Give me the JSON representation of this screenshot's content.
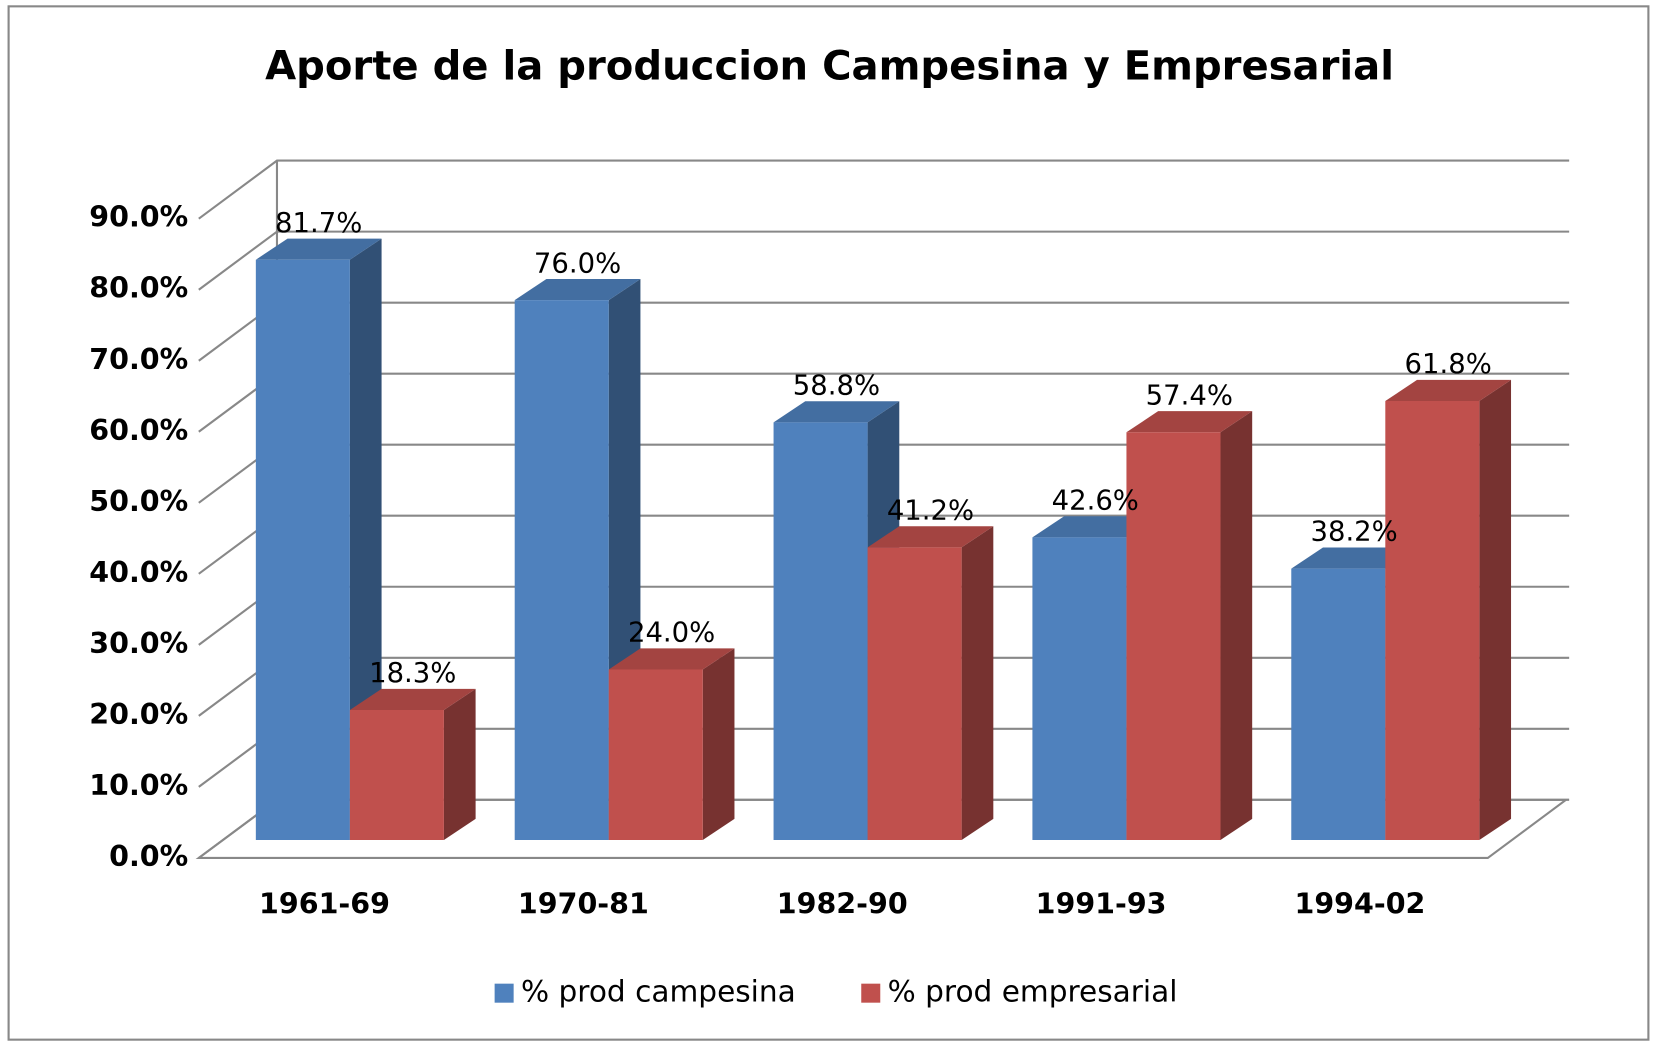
{
  "chart_data": {
    "type": "bar3d",
    "title": "Aporte de la produccion Campesina y Empresarial",
    "categories": [
      "1961-69",
      "1970-81",
      "1982-90",
      "1991-93",
      "1994-02"
    ],
    "series": [
      {
        "name": "% prod campesina",
        "color": "#4f81bd",
        "values": [
          81.7,
          76.0,
          58.8,
          42.6,
          38.2
        ],
        "value_labels": [
          "81.7%",
          "76.0%",
          "58.8%",
          "42.6%",
          "38.2%"
        ]
      },
      {
        "name": "% prod empresarial",
        "color": "#c0504d",
        "values": [
          18.3,
          24.0,
          41.2,
          57.4,
          61.8
        ],
        "value_labels": [
          "18.3%",
          "24.0%",
          "41.2%",
          "57.4%",
          "61.8%"
        ]
      }
    ],
    "ylim": [
      0,
      90
    ],
    "yticks": [
      {
        "value": 0,
        "label": "0.0%"
      },
      {
        "value": 10,
        "label": "10.0%"
      },
      {
        "value": 20,
        "label": "20.0%"
      },
      {
        "value": 30,
        "label": "30.0%"
      },
      {
        "value": 40,
        "label": "40.0%"
      },
      {
        "value": 50,
        "label": "50.0%"
      },
      {
        "value": 60,
        "label": "60.0%"
      },
      {
        "value": 70,
        "label": "70.0%"
      },
      {
        "value": 80,
        "label": "80.0%"
      },
      {
        "value": 90,
        "label": "90.0%"
      }
    ],
    "grid": true,
    "legend": "bottom"
  }
}
